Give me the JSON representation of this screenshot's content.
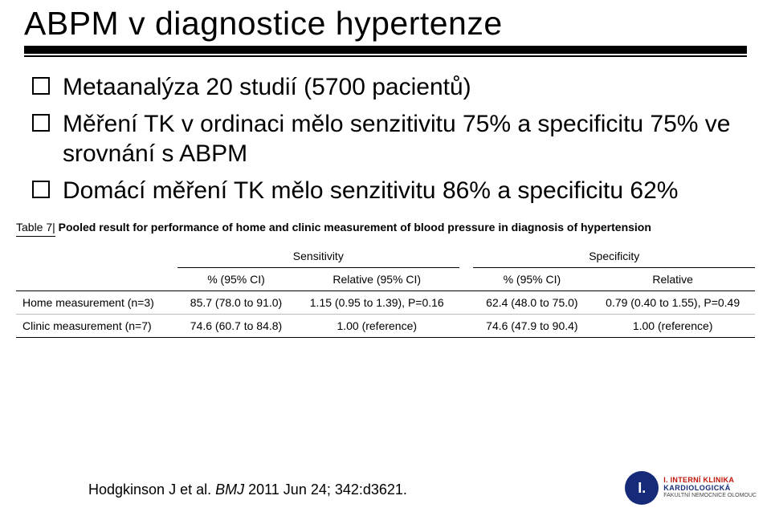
{
  "title": "ABPM v diagnostice hypertenze",
  "bullets": [
    "Metaanalýza 20 studií (5700 pacientů)",
    "Měření TK v ordinaci mělo senzitivitu 75% a specificitu 75% ve srovnání s ABPM",
    "Domácí měření TK mělo senzitivitu 86% a specificitu 62%"
  ],
  "table": {
    "caption_label": "Table 7|",
    "caption_bold": " Pooled result for performance of home and clinic measurement of blood pressure in diagnosis of hypertension",
    "groups": [
      "Sensitivity",
      "Specificity"
    ],
    "columns": [
      "% (95% CI)",
      "Relative (95% CI)",
      "% (95% CI)",
      "Relative"
    ],
    "rows": [
      {
        "label": "Home measurement (n=3)",
        "cells": [
          "85.7 (78.0 to 91.0)",
          "1.15 (0.95 to 1.39), P=0.16",
          "62.4 (48.0 to 75.0)",
          "0.79 (0.40 to 1.55), P=0.49"
        ]
      },
      {
        "label": "Clinic measurement (n=7)",
        "cells": [
          "74.6 (60.7 to 84.8)",
          "1.00 (reference)",
          "74.6 (47.9 to 90.4)",
          "1.00 (reference)"
        ]
      }
    ]
  },
  "citation": {
    "authors": "Hodgkinson J et al. ",
    "journal": "BMJ",
    "rest": " 2011 Jun 24; 342:d3621."
  },
  "logo": {
    "glyph": "I.",
    "line1": "I. INTERNÍ KLINIKA",
    "line2": "KARDIOLOGICKÁ",
    "line3": "FAKULTNÍ NEMOCNICE OLOMOUC"
  },
  "colors": {
    "rule": "#000000",
    "accent_red": "#c01408",
    "accent_blue": "#162a7a"
  }
}
